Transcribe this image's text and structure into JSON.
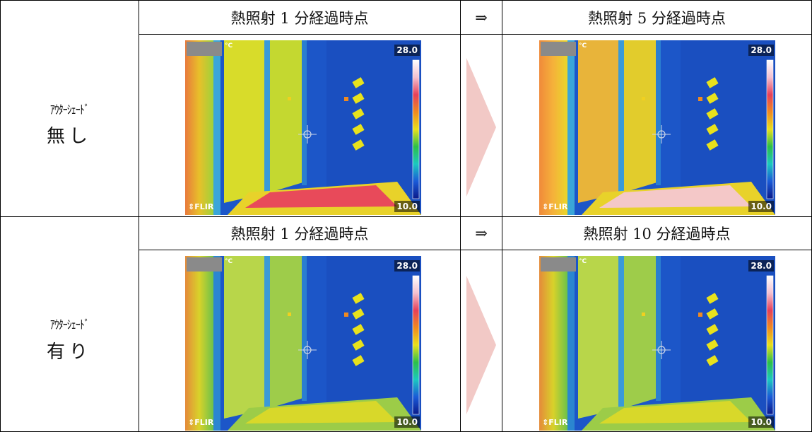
{
  "rows": [
    {
      "label_small": "ｱｳﾀｰｼｪｰﾄﾞ",
      "label_big": "無し",
      "header_left": "熱照射 1 分経過時点",
      "header_right": "熱照射 5 分経過時点",
      "arrow": "⇒",
      "images": [
        {
          "scale_max": "28.0",
          "scale_min": "10.0",
          "brand": "FLIR",
          "unit": "°C",
          "state": "1min-no-shade"
        },
        {
          "scale_max": "28.0",
          "scale_min": "10.0",
          "brand": "FLIR",
          "unit": "°C",
          "state": "5min-no-shade"
        }
      ]
    },
    {
      "label_small": "ｱｳﾀｰｼｪｰﾄﾞ",
      "label_big": "有り",
      "header_left": "熱照射 1 分経過時点",
      "header_right": "熱照射 10 分経過時点",
      "arrow": "⇒",
      "images": [
        {
          "scale_max": "28.0",
          "scale_min": "10.0",
          "brand": "FLIR",
          "unit": "°C",
          "state": "1min-shade"
        },
        {
          "scale_max": "28.0",
          "scale_min": "10.0",
          "brand": "FLIR",
          "unit": "°C",
          "state": "10min-shade"
        }
      ]
    }
  ],
  "colors": {
    "border": "#000000",
    "arrow_fill": "#f2c9c6",
    "thermal_blue": "#1c56c8",
    "thermal_yellow": "#e8e21c",
    "thermal_red": "#e6405a"
  }
}
